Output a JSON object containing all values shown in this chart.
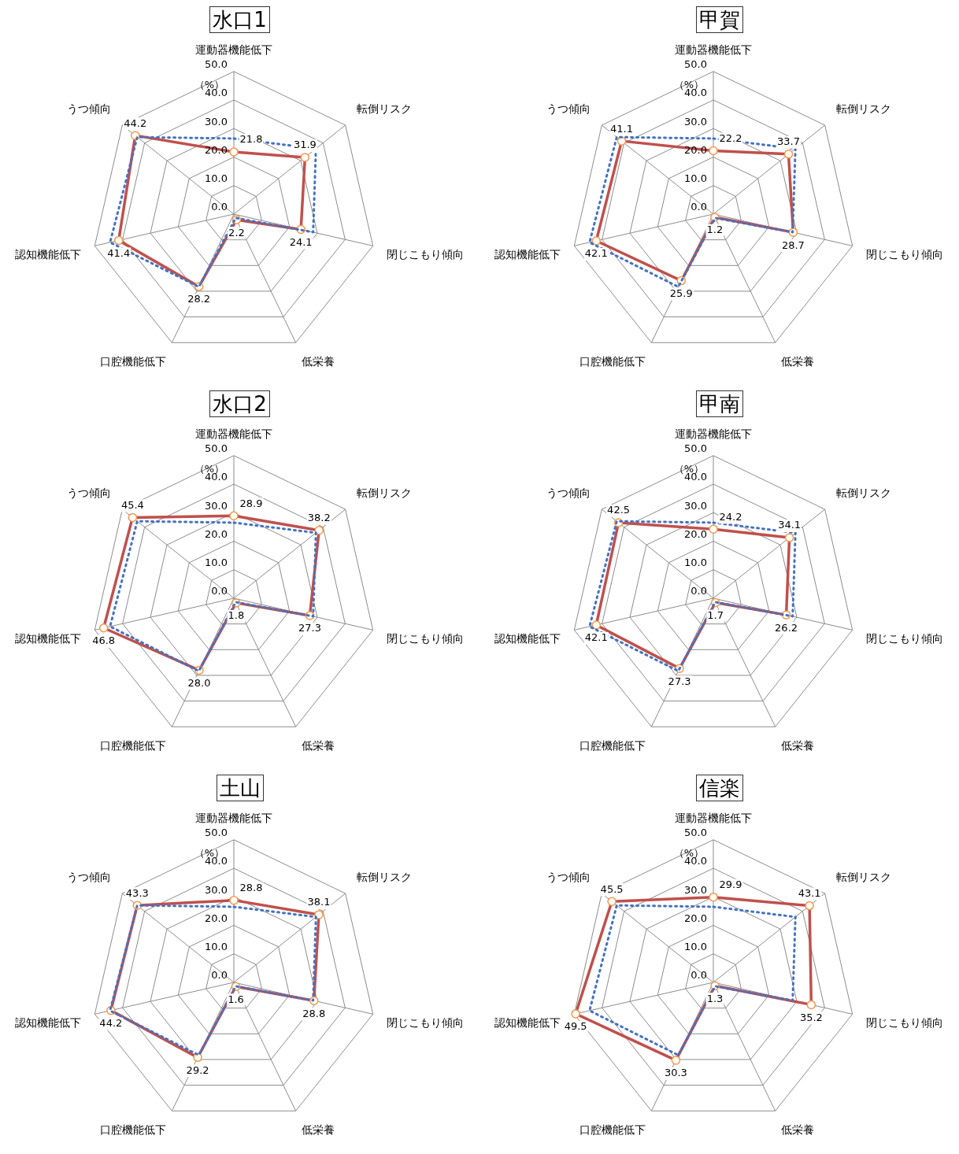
{
  "chart_data": [
    {
      "type": "radar",
      "title": "水口1",
      "ylabel": "（%）",
      "categories": [
        "運動器機能低下",
        "転倒リスク",
        "閉じこもり傾向",
        "低栄養",
        "口腔機能低下",
        "認知機能低下",
        "うつ傾向"
      ],
      "ylim": [
        0,
        50
      ],
      "yticks": [
        {
          "value": 0,
          "label": "0.0"
        },
        {
          "value": 10,
          "label": "10.0"
        },
        {
          "value": 20,
          "label": "20.0"
        },
        {
          "value": 30,
          "label": "30.0"
        },
        {
          "value": 40,
          "label": "40.0"
        },
        {
          "value": 50,
          "label": "50.0"
        }
      ],
      "grid": true,
      "legend": false,
      "series": [
        {
          "color": "#4472c4",
          "line_style": "dotted",
          "marker": "none",
          "values": [
            26.5,
            36.8,
            28.5,
            1.5,
            28.3,
            44.5,
            43.3
          ]
        },
        {
          "color": "#c0504d",
          "line_style": "solid",
          "marker": "circle",
          "values": [
            21.8,
            31.9,
            24.1,
            2.2,
            28.2,
            41.4,
            44.2
          ],
          "value_labels": [
            "21.8",
            "31.9",
            "24.1",
            "2.2",
            "28.2",
            "41.4",
            "44.2"
          ]
        }
      ]
    },
    {
      "type": "radar",
      "title": "甲賀",
      "ylabel": "（%）",
      "categories": [
        "運動器機能低下",
        "転倒リスク",
        "閉じこもり傾向",
        "低栄養",
        "口腔機能低下",
        "認知機能低下",
        "うつ傾向"
      ],
      "ylim": [
        0,
        50
      ],
      "yticks": [
        {
          "value": 0,
          "label": "0.0"
        },
        {
          "value": 10,
          "label": "10.0"
        },
        {
          "value": 20,
          "label": "20.0"
        },
        {
          "value": 30,
          "label": "30.0"
        },
        {
          "value": 40,
          "label": "40.0"
        },
        {
          "value": 50,
          "label": "50.0"
        }
      ],
      "grid": true,
      "legend": false,
      "series": [
        {
          "color": "#4472c4",
          "line_style": "dotted",
          "marker": "none",
          "values": [
            26.5,
            36.8,
            28.5,
            1.5,
            28.3,
            44.5,
            43.3
          ]
        },
        {
          "color": "#c0504d",
          "line_style": "solid",
          "marker": "circle",
          "values": [
            22.2,
            33.7,
            28.7,
            1.2,
            25.9,
            42.1,
            41.1
          ],
          "value_labels": [
            "22.2",
            "33.7",
            "28.7",
            "1.2",
            "25.9",
            "42.1",
            "41.1"
          ]
        }
      ]
    },
    {
      "type": "radar",
      "title": "水口2",
      "ylabel": "（%）",
      "categories": [
        "運動器機能低下",
        "転倒リスク",
        "閉じこもり傾向",
        "低栄養",
        "口腔機能低下",
        "認知機能低下",
        "うつ傾向"
      ],
      "ylim": [
        0,
        50
      ],
      "yticks": [
        {
          "value": 0,
          "label": "0.0"
        },
        {
          "value": 10,
          "label": "10.0"
        },
        {
          "value": 20,
          "label": "20.0"
        },
        {
          "value": 30,
          "label": "30.0"
        },
        {
          "value": 40,
          "label": "40.0"
        },
        {
          "value": 50,
          "label": "50.0"
        }
      ],
      "grid": true,
      "legend": false,
      "series": [
        {
          "color": "#4472c4",
          "line_style": "dotted",
          "marker": "none",
          "values": [
            26.5,
            36.8,
            28.5,
            1.5,
            28.3,
            44.5,
            43.3
          ]
        },
        {
          "color": "#c0504d",
          "line_style": "solid",
          "marker": "circle",
          "values": [
            28.9,
            38.2,
            27.3,
            1.8,
            28.0,
            46.8,
            45.4
          ],
          "value_labels": [
            "28.9",
            "38.2",
            "27.3",
            "1.8",
            "28.0",
            "46.8",
            "45.4"
          ]
        }
      ]
    },
    {
      "type": "radar",
      "title": "甲南",
      "ylabel": "（%）",
      "categories": [
        "運動器機能低下",
        "転倒リスク",
        "閉じこもり傾向",
        "低栄養",
        "口腔機能低下",
        "認知機能低下",
        "うつ傾向"
      ],
      "ylim": [
        0,
        50
      ],
      "yticks": [
        {
          "value": 0,
          "label": "0.0"
        },
        {
          "value": 10,
          "label": "10.0"
        },
        {
          "value": 20,
          "label": "20.0"
        },
        {
          "value": 30,
          "label": "30.0"
        },
        {
          "value": 40,
          "label": "40.0"
        },
        {
          "value": 50,
          "label": "50.0"
        }
      ],
      "grid": true,
      "legend": false,
      "series": [
        {
          "color": "#4472c4",
          "line_style": "dotted",
          "marker": "none",
          "values": [
            26.5,
            36.8,
            28.5,
            1.5,
            28.3,
            44.5,
            43.3
          ]
        },
        {
          "color": "#c0504d",
          "line_style": "solid",
          "marker": "circle",
          "values": [
            24.2,
            34.1,
            26.2,
            1.7,
            27.3,
            42.1,
            42.5
          ],
          "value_labels": [
            "24.2",
            "34.1",
            "26.2",
            "1.7",
            "27.3",
            "42.1",
            "42.5"
          ]
        }
      ]
    },
    {
      "type": "radar",
      "title": "土山",
      "ylabel": "（%）",
      "categories": [
        "運動器機能低下",
        "転倒リスク",
        "閉じこもり傾向",
        "低栄養",
        "口腔機能低下",
        "認知機能低下",
        "うつ傾向"
      ],
      "ylim": [
        0,
        50
      ],
      "yticks": [
        {
          "value": 0,
          "label": "0.0"
        },
        {
          "value": 10,
          "label": "10.0"
        },
        {
          "value": 20,
          "label": "20.0"
        },
        {
          "value": 30,
          "label": "30.0"
        },
        {
          "value": 40,
          "label": "40.0"
        },
        {
          "value": 50,
          "label": "50.0"
        }
      ],
      "grid": true,
      "legend": false,
      "series": [
        {
          "color": "#4472c4",
          "line_style": "dotted",
          "marker": "none",
          "values": [
            26.5,
            36.8,
            28.5,
            1.5,
            28.3,
            44.5,
            43.3
          ]
        },
        {
          "color": "#c0504d",
          "line_style": "solid",
          "marker": "circle",
          "values": [
            28.8,
            38.1,
            28.8,
            1.6,
            29.2,
            44.2,
            43.3
          ],
          "value_labels": [
            "28.8",
            "38.1",
            "28.8",
            "1.6",
            "29.2",
            "44.2",
            "43.3"
          ]
        }
      ]
    },
    {
      "type": "radar",
      "title": "信楽",
      "ylabel": "（%）",
      "categories": [
        "運動器機能低下",
        "転倒リスク",
        "閉じこもり傾向",
        "低栄養",
        "口腔機能低下",
        "認知機能低下",
        "うつ傾向"
      ],
      "ylim": [
        0,
        50
      ],
      "yticks": [
        {
          "value": 0,
          "label": "0.0"
        },
        {
          "value": 10,
          "label": "10.0"
        },
        {
          "value": 20,
          "label": "20.0"
        },
        {
          "value": 30,
          "label": "30.0"
        },
        {
          "value": 40,
          "label": "40.0"
        },
        {
          "value": 50,
          "label": "50.0"
        }
      ],
      "grid": true,
      "legend": false,
      "series": [
        {
          "color": "#4472c4",
          "line_style": "dotted",
          "marker": "none",
          "values": [
            26.5,
            36.8,
            28.5,
            1.5,
            28.3,
            44.5,
            43.3
          ]
        },
        {
          "color": "#c0504d",
          "line_style": "solid",
          "marker": "circle",
          "values": [
            29.9,
            43.1,
            35.2,
            1.3,
            30.3,
            49.5,
            45.5
          ],
          "value_labels": [
            "29.9",
            "43.1",
            "35.2",
            "1.3",
            "30.3",
            "49.5",
            "45.5"
          ]
        }
      ]
    }
  ]
}
